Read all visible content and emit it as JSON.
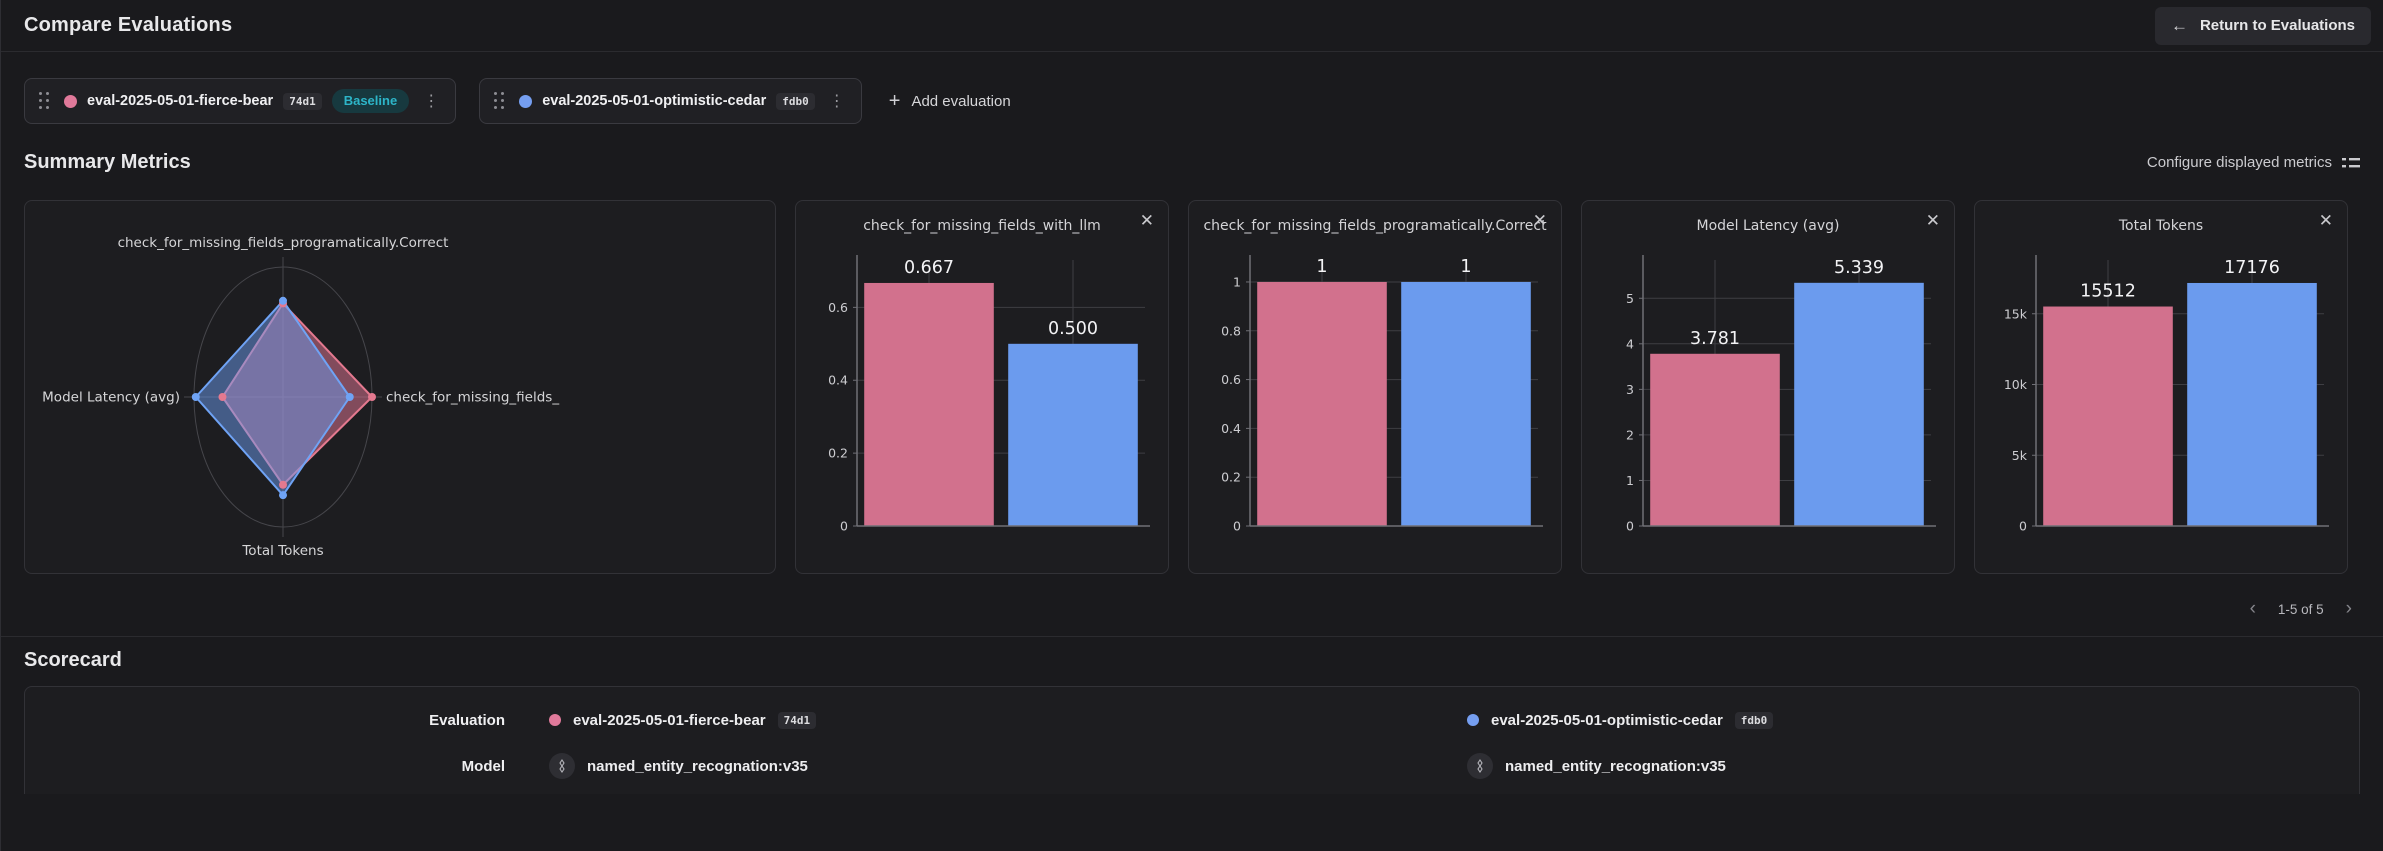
{
  "header": {
    "title": "Compare Evaluations",
    "return_button": "Return to Evaluations"
  },
  "icons": {
    "back_arrow": "←",
    "menu": "⋮",
    "plus": "+",
    "close": "✕",
    "prev": "‹",
    "next": "›"
  },
  "evaluations": [
    {
      "name": "eval-2025-05-01-fierce-bear",
      "hash": "74d1",
      "baseline_label": "Baseline",
      "color": "#e0799a"
    },
    {
      "name": "eval-2025-05-01-optimistic-cedar",
      "hash": "fdb0",
      "color": "#759ef0"
    }
  ],
  "add_evaluation_label": "Add evaluation",
  "summary": {
    "title": "Summary Metrics",
    "configure_label": "Configure displayed metrics"
  },
  "pagination": {
    "range": "1-5 of 5"
  },
  "scorecard": {
    "title": "Scorecard",
    "row_labels": [
      "Evaluation",
      "Model"
    ],
    "model_values": [
      "named_entity_recognation:v35",
      "named_entity_recognation:v35"
    ]
  },
  "chart_data": [
    {
      "type": "radar",
      "axes": [
        "check_for_missing_fields_programatically.Correct",
        "check_for_missing_fields_",
        "Total Tokens",
        "Model Latency (avg)"
      ],
      "series": [
        {
          "name": "eval-2025-05-01-fierce-bear",
          "color": "#e4798f",
          "fill": "rgba(214,113,142,0.55)",
          "values": [
            1,
            0.667,
            15512,
            3.781
          ],
          "plot_fractions": [
            0.72,
            1.0,
            0.675,
            0.68
          ]
        },
        {
          "name": "eval-2025-05-01-optimistic-cedar",
          "color": "#6fa3f5",
          "fill": "rgba(107,155,238,0.5)",
          "values": [
            1,
            0.5,
            17176,
            5.339
          ],
          "plot_fractions": [
            0.74,
            0.75,
            0.755,
            0.98
          ]
        }
      ],
      "grid": "single outer ring, 4 spoke axes",
      "legend": "none"
    },
    {
      "type": "bar",
      "title": "check_for_missing_fields_with_llm",
      "categories": [
        "eval-2025-05-01-fierce-bear",
        "eval-2025-05-01-optimistic-cedar"
      ],
      "values": [
        0.667,
        0.5
      ],
      "value_labels": [
        "0.667",
        "0.500"
      ],
      "colors": [
        "#d2718d",
        "#6b9bee"
      ],
      "ticks": [
        0,
        0.2,
        0.4,
        0.6
      ],
      "tick_labels": [
        "0",
        "0.2",
        "0.4",
        "0.6"
      ],
      "ylim": [
        0,
        0.73
      ]
    },
    {
      "type": "bar",
      "title": "check_for_missing_fields_programatically.Correct",
      "categories": [
        "eval-2025-05-01-fierce-bear",
        "eval-2025-05-01-optimistic-cedar"
      ],
      "values": [
        1,
        1
      ],
      "value_labels": [
        "1",
        "1"
      ],
      "colors": [
        "#d2718d",
        "#6b9bee"
      ],
      "ticks": [
        0,
        0.2,
        0.4,
        0.6,
        0.8,
        1
      ],
      "tick_labels": [
        "0",
        "0.2",
        "0.4",
        "0.6",
        "0.8",
        "1"
      ],
      "ylim": [
        0,
        1.09
      ]
    },
    {
      "type": "bar",
      "title": "Model Latency (avg)",
      "categories": [
        "eval-2025-05-01-fierce-bear",
        "eval-2025-05-01-optimistic-cedar"
      ],
      "values": [
        3.781,
        5.339
      ],
      "value_labels": [
        "3.781",
        "5.339"
      ],
      "colors": [
        "#d2718d",
        "#6b9bee"
      ],
      "ticks": [
        0,
        1,
        2,
        3,
        4,
        5
      ],
      "tick_labels": [
        "0",
        "1",
        "2",
        "3",
        "4",
        "5"
      ],
      "ylim": [
        0,
        5.84
      ]
    },
    {
      "type": "bar",
      "title": "Total Tokens",
      "categories": [
        "eval-2025-05-01-fierce-bear",
        "eval-2025-05-01-optimistic-cedar"
      ],
      "values": [
        15512,
        17176
      ],
      "value_labels": [
        "15512",
        "17176"
      ],
      "colors": [
        "#d2718d",
        "#6b9bee"
      ],
      "ticks": [
        0,
        5000,
        10000,
        15000
      ],
      "tick_labels": [
        "0",
        "5k",
        "10k",
        "15k"
      ],
      "ylim": [
        0,
        18800
      ]
    }
  ]
}
